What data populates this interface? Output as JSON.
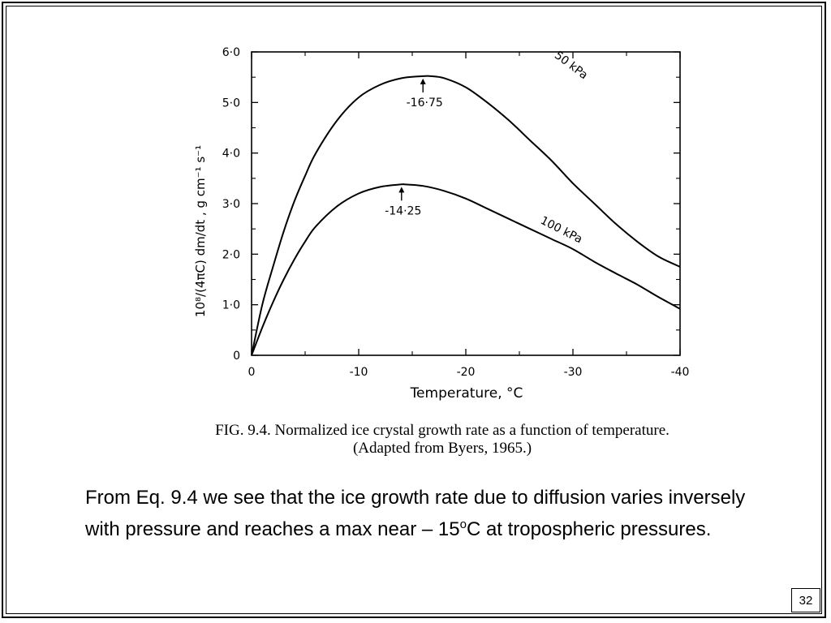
{
  "slide": {
    "caption_line1": "FIG. 9.4. Normalized ice crystal growth rate as a function of temperature.",
    "caption_line2": "(Adapted from Byers, 1965.)",
    "body_text": "From Eq. 9.4 we see that the ice growth rate due to diffusion varies inversely with pressure and reaches a max near – 15",
    "body_superscript": "o",
    "body_text_end": "C at tropospheric pressures.",
    "page_number": "32"
  },
  "chart_data": {
    "type": "line",
    "title": "",
    "xlabel": "Temperature, °C",
    "ylabel": "10⁸/(4πC) dm/dt , g cm⁻¹ s⁻¹",
    "xlim": [
      0,
      -40
    ],
    "ylim": [
      0,
      6.0
    ],
    "x_ticks": [
      "0",
      "-10",
      "-20",
      "-30",
      "-40"
    ],
    "y_ticks": [
      "0",
      "1·0",
      "2·0",
      "3·0",
      "4·0",
      "5·0",
      "6·0"
    ],
    "series": [
      {
        "name": "50 kPa",
        "peak_label": "-16·75",
        "x": [
          0,
          -1,
          -2,
          -3,
          -4,
          -5,
          -6,
          -8,
          -10,
          -12,
          -14,
          -16,
          -16.75,
          -18,
          -20,
          -22,
          -24,
          -26,
          -28,
          -30,
          -32,
          -34,
          -36,
          -38,
          -40
        ],
        "y": [
          0,
          1.0,
          1.75,
          2.45,
          3.05,
          3.55,
          4.0,
          4.65,
          5.1,
          5.35,
          5.48,
          5.52,
          5.52,
          5.48,
          5.3,
          5.0,
          4.65,
          4.25,
          3.85,
          3.4,
          3.0,
          2.6,
          2.25,
          1.95,
          1.75
        ]
      },
      {
        "name": "100 kPa",
        "peak_label": "-14·25",
        "x": [
          0,
          -1,
          -2,
          -3,
          -4,
          -5,
          -6,
          -8,
          -10,
          -12,
          -14,
          -14.25,
          -16,
          -18,
          -20,
          -22,
          -24,
          -26,
          -28,
          -30,
          -32,
          -34,
          -36,
          -38,
          -40
        ],
        "y": [
          0,
          0.55,
          1.05,
          1.5,
          1.9,
          2.25,
          2.55,
          2.95,
          3.2,
          3.33,
          3.38,
          3.38,
          3.35,
          3.25,
          3.1,
          2.9,
          2.7,
          2.5,
          2.3,
          2.1,
          1.85,
          1.62,
          1.4,
          1.15,
          0.92
        ]
      }
    ]
  }
}
